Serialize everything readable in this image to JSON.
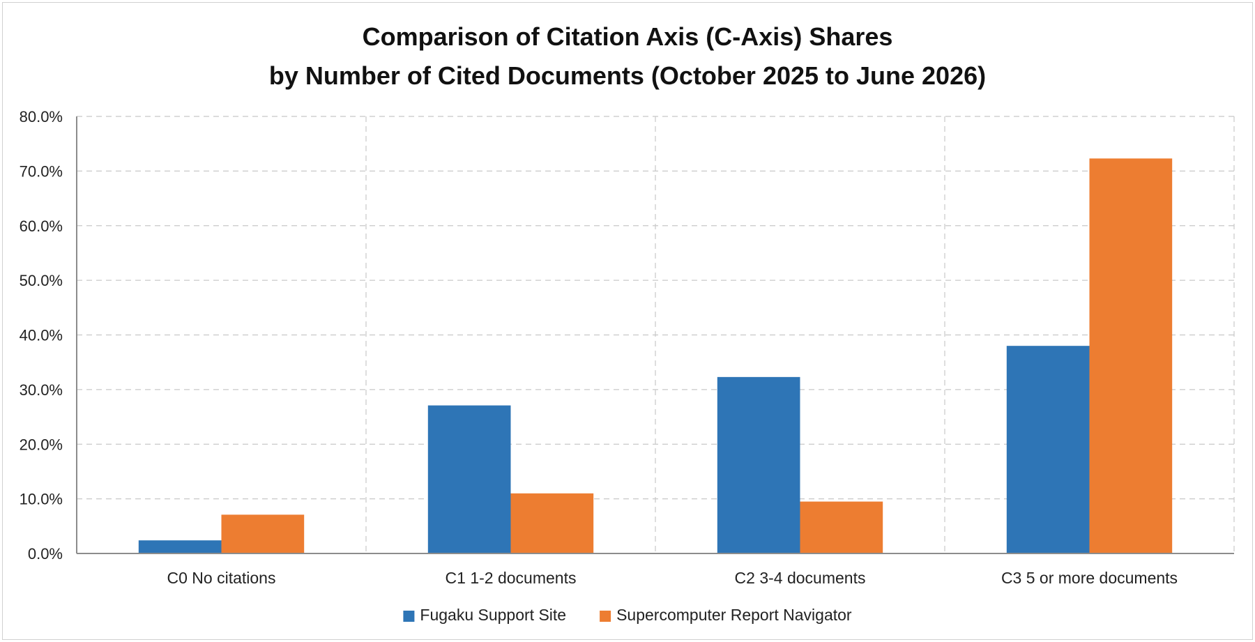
{
  "chart_data": {
    "type": "bar",
    "title_lines": [
      "Comparison of Citation Axis (C-Axis) Shares",
      "by Number of Cited Documents (October 2025 to June 2026)"
    ],
    "xlabel": "",
    "ylabel": "",
    "categories": [
      "C0 No citations",
      "C1 1-2 documents",
      "C2 3-4 documents",
      "C3 5 or more documents"
    ],
    "series": [
      {
        "name": "Fugaku Support Site",
        "color": "#2E75B6",
        "values": [
          2.4,
          27.1,
          32.3,
          38.0
        ]
      },
      {
        "name": "Supercomputer Report Navigator",
        "color": "#ED7D31",
        "values": [
          7.1,
          11.0,
          9.5,
          72.3
        ]
      }
    ],
    "ylim": [
      0,
      80
    ],
    "y_ticks": [
      0,
      10,
      20,
      30,
      40,
      50,
      60,
      70,
      80
    ],
    "y_tick_labels": [
      "0.0%",
      "10.0%",
      "20.0%",
      "30.0%",
      "40.0%",
      "50.0%",
      "60.0%",
      "70.0%",
      "80.0%"
    ],
    "grid": true,
    "legend_position": "bottom"
  }
}
